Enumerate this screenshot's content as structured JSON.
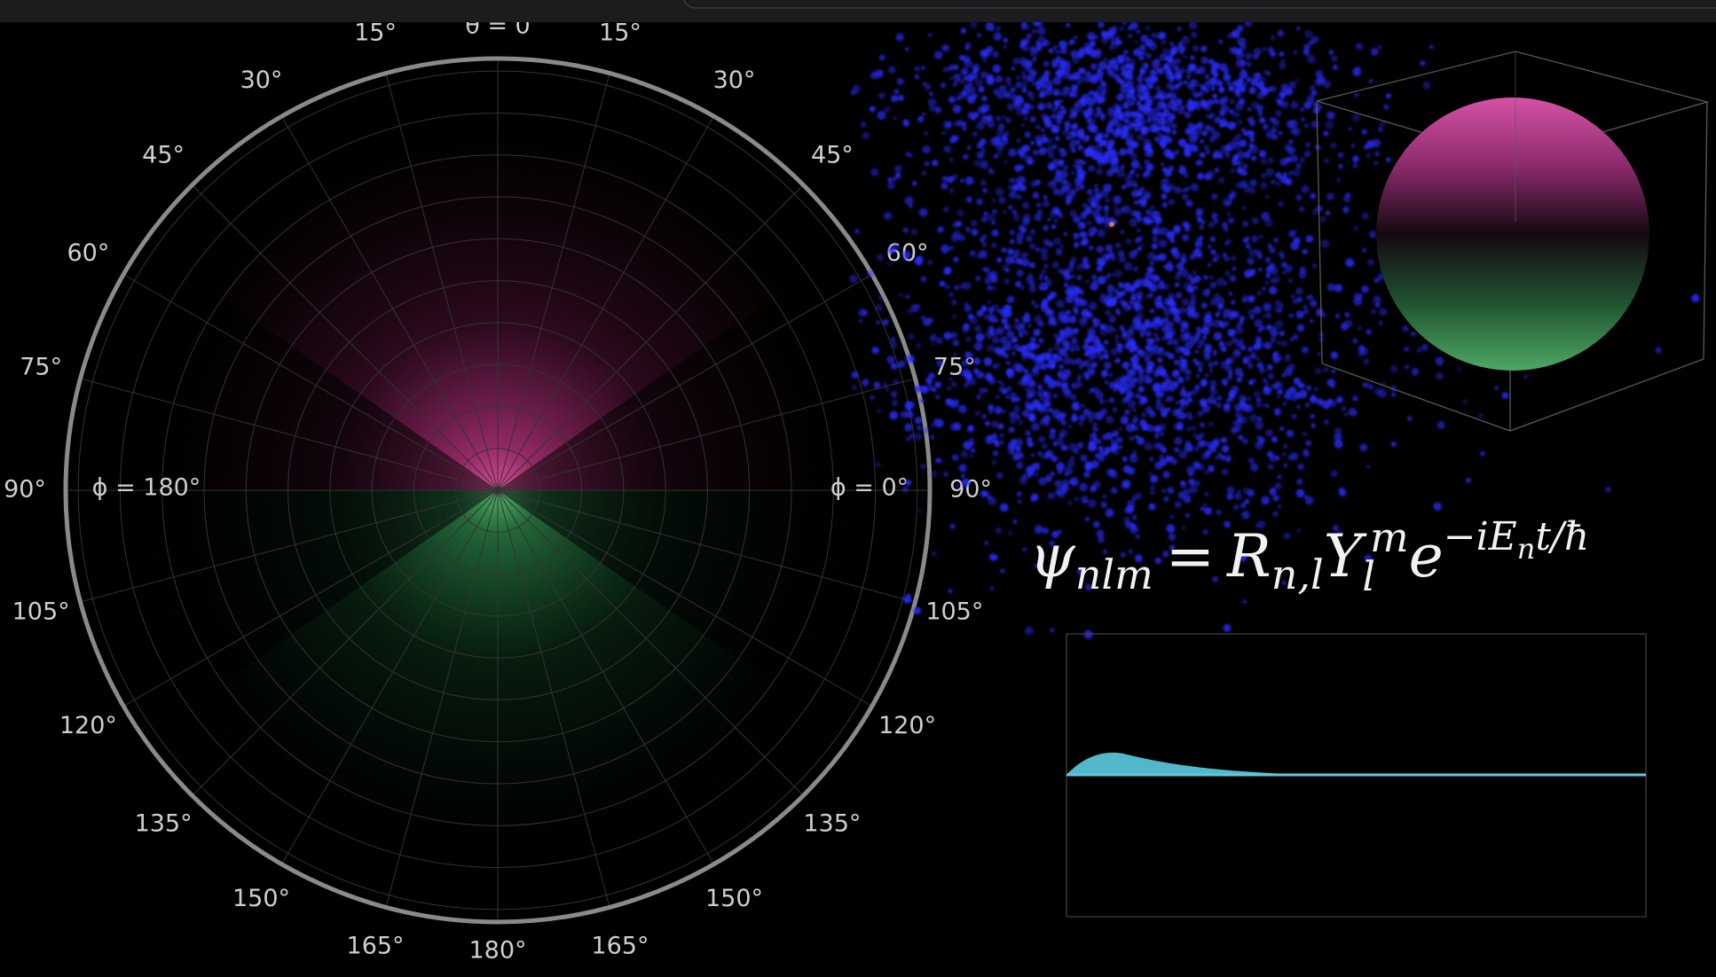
{
  "polar": {
    "top_label": "θ = 0",
    "angle_labels": [
      "15°",
      "30°",
      "45°",
      "60°",
      "75°",
      "90°",
      "105°",
      "120°",
      "135°",
      "150°",
      "165°"
    ],
    "bottom_label": "180°",
    "phi_left": "ϕ = 180°",
    "phi_right": "ϕ = 0°"
  },
  "equation": {
    "psi": "ψ",
    "psi_sub": "nlm",
    "equals": "=",
    "r": "R",
    "r_sub": "n,l",
    "y": "Y",
    "y_sub": "l",
    "y_sup": "m",
    "e": "e",
    "exp": "−iE",
    "exp_sub": "n",
    "exp_tail": "t/ħ"
  }
}
